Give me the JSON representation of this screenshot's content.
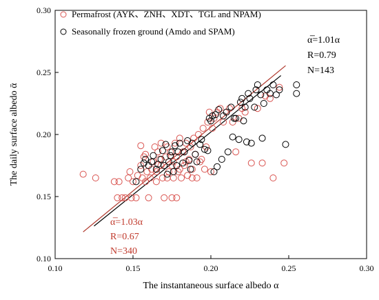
{
  "chart_data": {
    "type": "scatter",
    "xlabel": "The instantaneous surface albedo α",
    "ylabel": "The daily surface albedo ᾱ",
    "xlim": [
      0.1,
      0.3
    ],
    "ylim": [
      0.1,
      0.3
    ],
    "x_ticks": [
      "0.10",
      "0.15",
      "0.20",
      "0.25",
      "0.30"
    ],
    "y_ticks": [
      "0.10",
      "0.15",
      "0.20",
      "0.25",
      "0.30"
    ],
    "grid": false,
    "legend_position": "top-left",
    "series": [
      {
        "name": "Permafrost (AYK、ZNH、XDT、TGL and NPAM)",
        "marker": "open-circle",
        "color": "#d9534f",
        "fit": {
          "slope": 1.03,
          "x_range": [
            0.118,
            0.248
          ]
        },
        "annotation": {
          "eq": "α̅=1.03α",
          "r": "R=0.67",
          "n": "N=340"
        },
        "points": [
          [
            0.118,
            0.168
          ],
          [
            0.126,
            0.165
          ],
          [
            0.138,
            0.162
          ],
          [
            0.141,
            0.162
          ],
          [
            0.14,
            0.149
          ],
          [
            0.143,
            0.149
          ],
          [
            0.145,
            0.149
          ],
          [
            0.147,
            0.165
          ],
          [
            0.149,
            0.149
          ],
          [
            0.152,
            0.149
          ],
          [
            0.15,
            0.162
          ],
          [
            0.153,
            0.167
          ],
          [
            0.155,
            0.175
          ],
          [
            0.157,
            0.182
          ],
          [
            0.155,
            0.191
          ],
          [
            0.158,
            0.184
          ],
          [
            0.158,
            0.162
          ],
          [
            0.16,
            0.149
          ],
          [
            0.161,
            0.165
          ],
          [
            0.162,
            0.172
          ],
          [
            0.163,
            0.178
          ],
          [
            0.165,
            0.17
          ],
          [
            0.165,
            0.162
          ],
          [
            0.166,
            0.186
          ],
          [
            0.167,
            0.18
          ],
          [
            0.168,
            0.175
          ],
          [
            0.169,
            0.165
          ],
          [
            0.17,
            0.149
          ],
          [
            0.171,
            0.182
          ],
          [
            0.172,
            0.19
          ],
          [
            0.173,
            0.17
          ],
          [
            0.174,
            0.186
          ],
          [
            0.175,
            0.149
          ],
          [
            0.175,
            0.175
          ],
          [
            0.176,
            0.165
          ],
          [
            0.177,
            0.193
          ],
          [
            0.178,
            0.149
          ],
          [
            0.178,
            0.182
          ],
          [
            0.179,
            0.17
          ],
          [
            0.18,
            0.197
          ],
          [
            0.181,
            0.165
          ],
          [
            0.182,
            0.186
          ],
          [
            0.183,
            0.175
          ],
          [
            0.184,
            0.193
          ],
          [
            0.185,
            0.167
          ],
          [
            0.186,
            0.18
          ],
          [
            0.187,
            0.19
          ],
          [
            0.188,
            0.172
          ],
          [
            0.189,
            0.197
          ],
          [
            0.19,
            0.184
          ],
          [
            0.191,
            0.165
          ],
          [
            0.192,
            0.2
          ],
          [
            0.193,
            0.178
          ],
          [
            0.195,
            0.205
          ],
          [
            0.196,
            0.172
          ],
          [
            0.197,
            0.19
          ],
          [
            0.198,
            0.21
          ],
          [
            0.199,
            0.218
          ],
          [
            0.2,
            0.17
          ],
          [
            0.201,
            0.205
          ],
          [
            0.202,
            0.213
          ],
          [
            0.204,
            0.218
          ],
          [
            0.206,
            0.221
          ],
          [
            0.208,
            0.21
          ],
          [
            0.21,
            0.218
          ],
          [
            0.212,
            0.221
          ],
          [
            0.214,
            0.21
          ],
          [
            0.216,
            0.186
          ],
          [
            0.218,
            0.213
          ],
          [
            0.22,
            0.221
          ],
          [
            0.222,
            0.218
          ],
          [
            0.226,
            0.177
          ],
          [
            0.23,
            0.221
          ],
          [
            0.233,
            0.177
          ],
          [
            0.235,
            0.231
          ],
          [
            0.238,
            0.229
          ],
          [
            0.24,
            0.165
          ],
          [
            0.244,
            0.238
          ],
          [
            0.247,
            0.177
          ],
          [
            0.148,
            0.17
          ],
          [
            0.156,
            0.165
          ],
          [
            0.159,
            0.17
          ],
          [
            0.164,
            0.19
          ],
          [
            0.168,
            0.193
          ],
          [
            0.172,
            0.165
          ],
          [
            0.176,
            0.178
          ],
          [
            0.18,
            0.172
          ],
          [
            0.184,
            0.178
          ],
          [
            0.188,
            0.165
          ],
          [
            0.194,
            0.18
          ]
        ]
      },
      {
        "name": "Seasonally frozen ground (Amdo and SPAM)",
        "marker": "open-circle",
        "color": "#000000",
        "fit": {
          "slope": 1.01,
          "x_range": [
            0.125,
            0.245
          ]
        },
        "annotation": {
          "eq": "α̅=1.01α",
          "r": "R=0.79",
          "n": "N=143"
        },
        "points": [
          [
            0.152,
            0.162
          ],
          [
            0.155,
            0.172
          ],
          [
            0.157,
            0.177
          ],
          [
            0.158,
            0.18
          ],
          [
            0.16,
            0.175
          ],
          [
            0.162,
            0.178
          ],
          [
            0.163,
            0.183
          ],
          [
            0.165,
            0.172
          ],
          [
            0.166,
            0.176
          ],
          [
            0.168,
            0.18
          ],
          [
            0.169,
            0.187
          ],
          [
            0.17,
            0.175
          ],
          [
            0.171,
            0.192
          ],
          [
            0.173,
            0.178
          ],
          [
            0.174,
            0.183
          ],
          [
            0.175,
            0.186
          ],
          [
            0.177,
            0.191
          ],
          [
            0.178,
            0.175
          ],
          [
            0.179,
            0.186
          ],
          [
            0.18,
            0.193
          ],
          [
            0.182,
            0.177
          ],
          [
            0.183,
            0.186
          ],
          [
            0.185,
            0.195
          ],
          [
            0.186,
            0.179
          ],
          [
            0.188,
            0.193
          ],
          [
            0.19,
            0.184
          ],
          [
            0.191,
            0.178
          ],
          [
            0.193,
            0.192
          ],
          [
            0.194,
            0.196
          ],
          [
            0.196,
            0.188
          ],
          [
            0.198,
            0.187
          ],
          [
            0.199,
            0.213
          ],
          [
            0.2,
            0.211
          ],
          [
            0.201,
            0.215
          ],
          [
            0.203,
            0.216
          ],
          [
            0.204,
            0.174
          ],
          [
            0.205,
            0.22
          ],
          [
            0.207,
            0.18
          ],
          [
            0.208,
            0.215
          ],
          [
            0.21,
            0.218
          ],
          [
            0.211,
            0.186
          ],
          [
            0.213,
            0.222
          ],
          [
            0.214,
            0.198
          ],
          [
            0.216,
            0.213
          ],
          [
            0.218,
            0.196
          ],
          [
            0.219,
            0.226
          ],
          [
            0.22,
            0.229
          ],
          [
            0.222,
            0.222
          ],
          [
            0.223,
            0.194
          ],
          [
            0.224,
            0.233
          ],
          [
            0.225,
            0.229
          ],
          [
            0.226,
            0.193
          ],
          [
            0.228,
            0.222
          ],
          [
            0.229,
            0.236
          ],
          [
            0.23,
            0.24
          ],
          [
            0.232,
            0.232
          ],
          [
            0.233,
            0.197
          ],
          [
            0.234,
            0.225
          ],
          [
            0.236,
            0.236
          ],
          [
            0.238,
            0.233
          ],
          [
            0.24,
            0.24
          ],
          [
            0.242,
            0.232
          ],
          [
            0.244,
            0.236
          ],
          [
            0.248,
            0.192
          ],
          [
            0.255,
            0.24
          ],
          [
            0.255,
            0.233
          ],
          [
            0.187,
            0.172
          ],
          [
            0.176,
            0.17
          ],
          [
            0.172,
            0.168
          ],
          [
            0.215,
            0.213
          ],
          [
            0.221,
            0.211
          ],
          [
            0.202,
            0.17
          ]
        ]
      }
    ]
  }
}
